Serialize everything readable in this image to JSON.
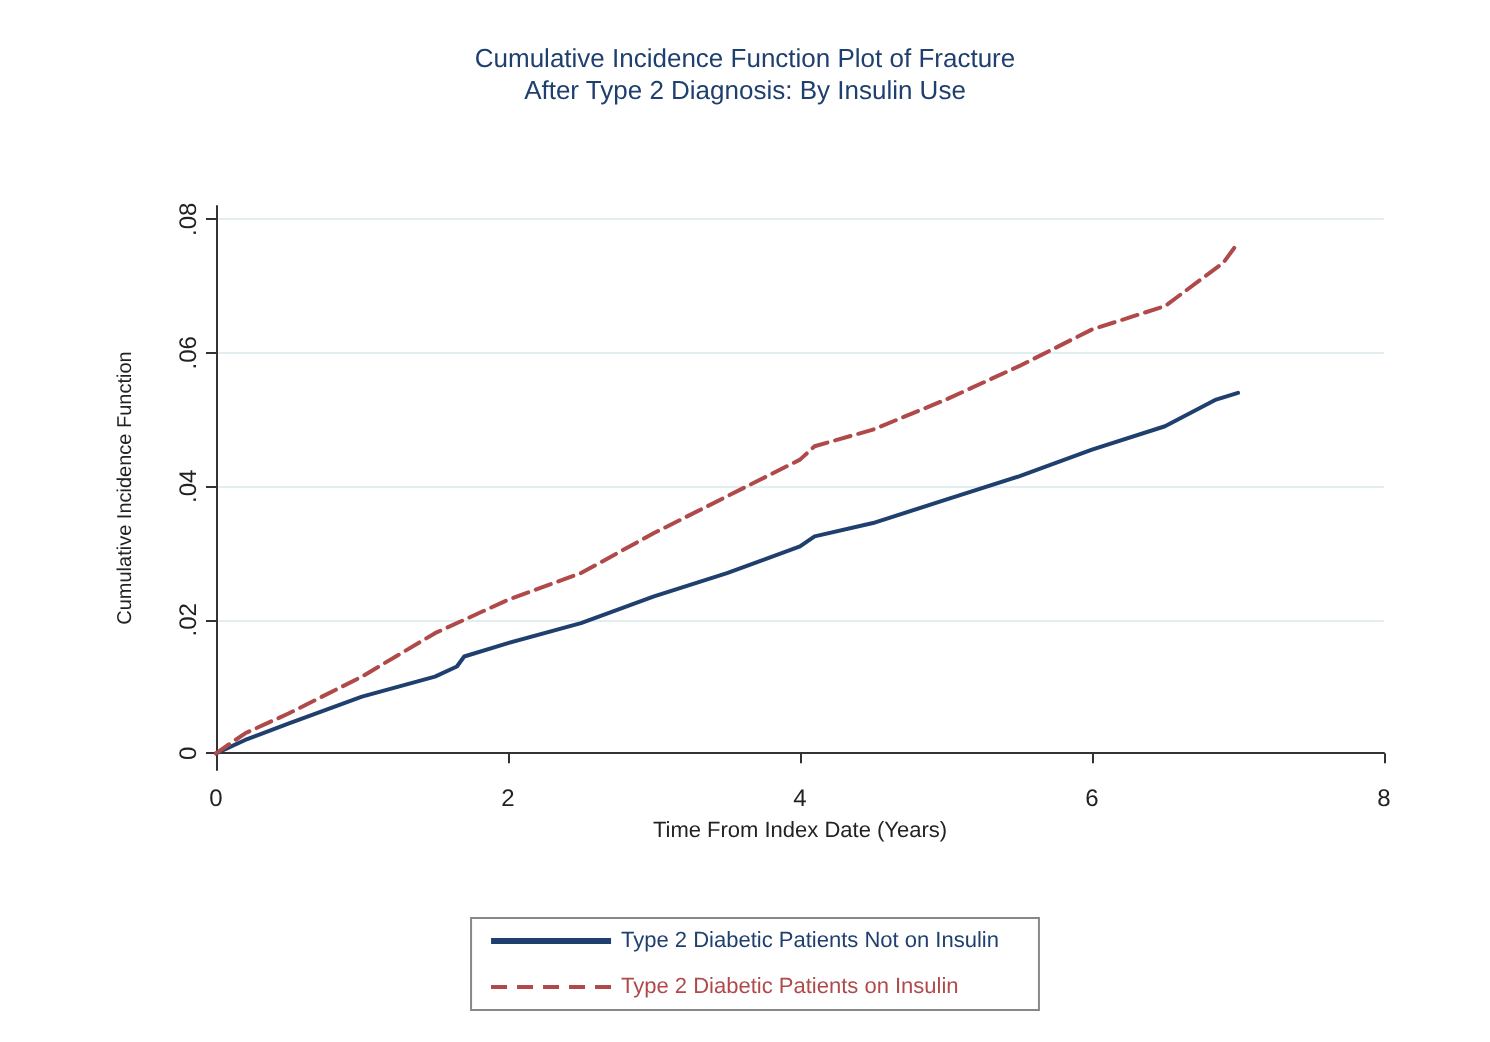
{
  "chart_data": {
    "type": "line",
    "title": "Cumulative Incidence Function Plot of Fracture\nAfter Type 2 Diagnosis: By Insulin Use",
    "xlabel": "Time From Index Date (Years)",
    "ylabel": "Cumulative Incidence Function",
    "xlim": [
      0,
      8
    ],
    "xticks": [
      0,
      2,
      4,
      6,
      8
    ],
    "ylim": [
      -0.0025,
      0.082
    ],
    "yticks": [
      {
        "value": 0,
        "label": "0"
      },
      {
        "value": 0.02,
        "label": ".02"
      },
      {
        "value": 0.04,
        "label": ".04"
      },
      {
        "value": 0.06,
        "label": ".06"
      },
      {
        "value": 0.08,
        "label": ".08"
      }
    ],
    "grid": "y",
    "legend": "bottom",
    "marker": "none",
    "series": [
      {
        "name": "Type 2 Diabetic Patients Not on Insulin",
        "color": "#1f3f6e",
        "line_style": "solid",
        "x": [
          0,
          0.2,
          0.5,
          1,
          1.5,
          1.65,
          1.7,
          2,
          2.5,
          3,
          3.5,
          4,
          4.1,
          4.5,
          5,
          5.5,
          6,
          6.5,
          6.85,
          7
        ],
        "values": [
          0,
          0.002,
          0.0045,
          0.0085,
          0.0115,
          0.013,
          0.0145,
          0.0165,
          0.0195,
          0.0235,
          0.027,
          0.031,
          0.0325,
          0.0345,
          0.038,
          0.0415,
          0.0455,
          0.049,
          0.053,
          0.054
        ]
      },
      {
        "name": "Type 2 Diabetic Patients on Insulin",
        "color": "#b04a4a",
        "line_style": "dashed",
        "x": [
          0,
          0.2,
          0.5,
          1,
          1.5,
          2,
          2.5,
          3,
          3.5,
          4,
          4.1,
          4.5,
          5,
          5.5,
          6,
          6.5,
          6.9,
          7
        ],
        "values": [
          0,
          0.003,
          0.006,
          0.0115,
          0.018,
          0.023,
          0.027,
          0.033,
          0.0385,
          0.044,
          0.046,
          0.0485,
          0.053,
          0.058,
          0.0635,
          0.067,
          0.0735,
          0.0765
        ]
      }
    ]
  }
}
